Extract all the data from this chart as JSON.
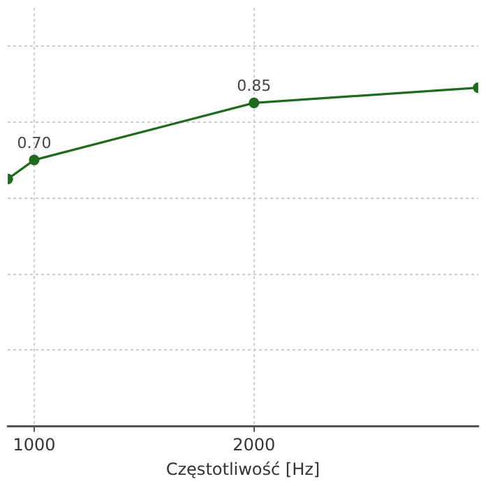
{
  "chart_data": {
    "type": "line",
    "xlabel": "Częstotliwość [Hz]",
    "x": [
      880,
      1000,
      2000,
      3020
    ],
    "series": [
      {
        "color": "#1e6b1e",
        "values": [
          0.65,
          0.7,
          0.85,
          0.89
        ],
        "value_labels": [
          null,
          "0.70",
          "0.85",
          null
        ]
      }
    ],
    "xlim": [
      880,
      3020
    ],
    "xticks": [
      1000,
      2000
    ],
    "ylim": [
      0,
      1.1
    ],
    "yticks": [
      0,
      0.2,
      0.4,
      0.6,
      0.8,
      1.0
    ],
    "grid": true,
    "tick_labels": "x",
    "marker": "circle",
    "line_style": "solid",
    "legend": false
  }
}
